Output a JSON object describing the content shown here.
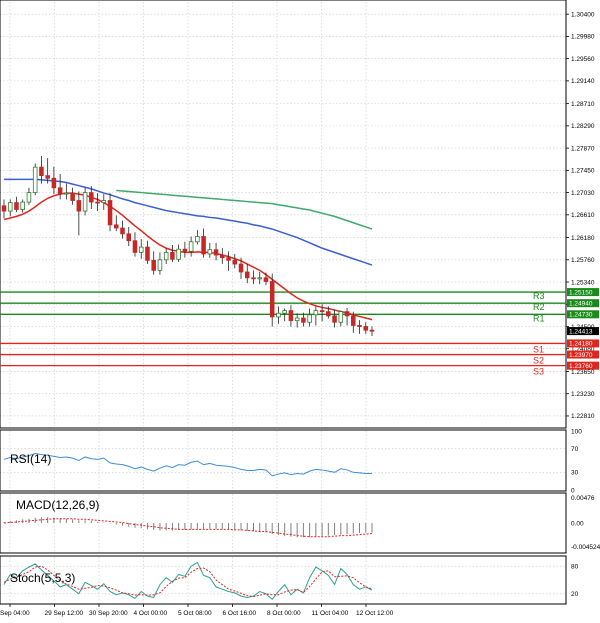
{
  "chart_data": {
    "type": "candlestick",
    "instrument_note": "",
    "colors": {
      "background": "#ffffff",
      "grid": "#c9c9c9",
      "bull": "#2e7d32",
      "bear": "#c62828",
      "ma_fast": "#e0261c",
      "ma_mid": "#3c5fd0",
      "ma_slow": "#3fa96a",
      "resistance": "#1a8a1a",
      "support": "#e0261c",
      "rsi": "#3c8fd9",
      "macd_hist": "#808080",
      "macd_signal": "#e0261c",
      "stoch_main": "#2aa198",
      "stoch_signal": "#e0261c"
    },
    "x_tick_labels": [
      "Sep 04:00",
      "29 Sep 12:00",
      "30 Sep 20:00",
      "4 Oct 00:00",
      "5 Oct 08:00",
      "6 Oct 16:00",
      "8 Oct 00:00",
      "11 Oct 04:00",
      "12 Oct 12:00"
    ],
    "price_axis": {
      "ylim": [
        1.2262,
        1.3063
      ],
      "tick_labels": [
        "1.30400",
        "1.29980",
        "1.29560",
        "1.29140",
        "1.28710",
        "1.28290",
        "1.27870",
        "1.27450",
        "1.27030",
        "1.26610",
        "1.26180",
        "1.25760",
        "1.25340",
        "1.24920",
        "1.24500",
        "1.24080",
        "1.23650",
        "1.23230",
        "1.22810"
      ]
    },
    "levels": {
      "resistance": [
        {
          "name": "R3",
          "value": 1.2515,
          "badge": "1.25150"
        },
        {
          "name": "R2",
          "value": 1.2494,
          "badge": "1.24940"
        },
        {
          "name": "R1",
          "value": 1.2473,
          "badge": "1.24730"
        }
      ],
      "support": [
        {
          "name": "S1",
          "value": 1.2418,
          "badge": "1.24180"
        },
        {
          "name": "S2",
          "value": 1.2397,
          "badge": "1.23970"
        },
        {
          "name": "S3",
          "value": 1.2376,
          "badge": "1.23760"
        }
      ],
      "current": {
        "value": 1.24413,
        "badge": "1.24413"
      }
    },
    "candles": {
      "open": [
        1.2678,
        1.2668,
        1.2684,
        1.2671,
        1.2685,
        1.2703,
        1.2751,
        1.2735,
        1.273,
        1.2712,
        1.2701,
        1.2702,
        1.2688,
        1.2668,
        1.2703,
        1.2685,
        1.2684,
        1.2688,
        1.2642,
        1.2636,
        1.2625,
        1.2612,
        1.259,
        1.26,
        1.2575,
        1.2556,
        1.2576,
        1.259,
        1.2577,
        1.2596,
        1.2592,
        1.261,
        1.262,
        1.2587,
        1.2595,
        1.2585,
        1.258,
        1.2575,
        1.2568,
        1.2553,
        1.2542,
        1.254,
        1.2542,
        1.2535,
        1.2468,
        1.2475,
        1.248,
        1.2461,
        1.2466,
        1.2458,
        1.2472,
        1.248,
        1.2478,
        1.247,
        1.2458,
        1.2478,
        1.247,
        1.2452,
        1.245,
        1.2443
      ],
      "high": [
        1.269,
        1.269,
        1.2695,
        1.269,
        1.2712,
        1.2758,
        1.2772,
        1.2768,
        1.2752,
        1.2738,
        1.272,
        1.2712,
        1.2705,
        1.2712,
        1.2715,
        1.2702,
        1.27,
        1.2702,
        1.266,
        1.265,
        1.2638,
        1.2628,
        1.2615,
        1.2612,
        1.2592,
        1.259,
        1.2598,
        1.2604,
        1.2605,
        1.261,
        1.262,
        1.2632,
        1.2635,
        1.2608,
        1.2608,
        1.2598,
        1.2592,
        1.2587,
        1.258,
        1.2568,
        1.2556,
        1.2553,
        1.2552,
        1.255,
        1.2488,
        1.2484,
        1.249,
        1.2475,
        1.2476,
        1.2484,
        1.2488,
        1.2492,
        1.2488,
        1.2482,
        1.248,
        1.2485,
        1.2478,
        1.2462,
        1.2458,
        1.245
      ],
      "low": [
        1.2654,
        1.2658,
        1.2666,
        1.2665,
        1.268,
        1.2698,
        1.272,
        1.272,
        1.27,
        1.269,
        1.269,
        1.268,
        1.2622,
        1.266,
        1.2672,
        1.2668,
        1.267,
        1.263,
        1.263,
        1.2616,
        1.2602,
        1.2582,
        1.2578,
        1.2568,
        1.2548,
        1.2548,
        1.2568,
        1.2572,
        1.2572,
        1.258,
        1.2582,
        1.2605,
        1.258,
        1.258,
        1.2575,
        1.2568,
        1.2555,
        1.256,
        1.254,
        1.2532,
        1.253,
        1.253,
        1.2528,
        1.245,
        1.2455,
        1.246,
        1.245,
        1.2448,
        1.245,
        1.245,
        1.2452,
        1.246,
        1.2465,
        1.2448,
        1.245,
        1.2452,
        1.2438,
        1.2436,
        1.2436,
        1.2432
      ],
      "close": [
        1.2668,
        1.2684,
        1.2671,
        1.2685,
        1.2703,
        1.2751,
        1.2735,
        1.273,
        1.2712,
        1.2701,
        1.2702,
        1.2688,
        1.2668,
        1.2703,
        1.2685,
        1.2684,
        1.2688,
        1.2642,
        1.2636,
        1.2625,
        1.2612,
        1.259,
        1.26,
        1.2575,
        1.2556,
        1.2576,
        1.259,
        1.2577,
        1.2596,
        1.2592,
        1.261,
        1.262,
        1.2587,
        1.2595,
        1.2585,
        1.258,
        1.2575,
        1.2568,
        1.2553,
        1.2542,
        1.254,
        1.2542,
        1.2535,
        1.2468,
        1.2475,
        1.248,
        1.2461,
        1.2466,
        1.2458,
        1.2472,
        1.248,
        1.2478,
        1.247,
        1.2458,
        1.2478,
        1.247,
        1.2452,
        1.245,
        1.2443,
        1.2441
      ]
    },
    "moving_averages": [
      {
        "key": "ma_fast",
        "values": [
          1.2652,
          1.2655,
          1.2658,
          1.2662,
          1.2668,
          1.2676,
          1.2685,
          1.2692,
          1.2697,
          1.27,
          1.2702,
          1.2702,
          1.27,
          1.2698,
          1.2694,
          1.269,
          1.2684,
          1.2677,
          1.2669,
          1.266,
          1.265,
          1.264,
          1.2631,
          1.2621,
          1.2612,
          1.2604,
          1.2598,
          1.2594,
          1.2592,
          1.259,
          1.259,
          1.2591,
          1.259,
          1.259,
          1.2588,
          1.2585,
          1.2582,
          1.2578,
          1.2574,
          1.2568,
          1.2562,
          1.2556,
          1.2548,
          1.2539,
          1.253,
          1.2521,
          1.2512,
          1.2504,
          1.2498,
          1.2493,
          1.2489,
          1.2486,
          1.2484,
          1.2481,
          1.2478,
          1.2476,
          1.2472,
          1.2469,
          1.2466,
          1.2463
        ]
      },
      {
        "key": "ma_mid",
        "values": [
          1.2728,
          1.2728,
          1.2728,
          1.2728,
          1.2728,
          1.2728,
          1.2727,
          1.2726,
          1.2725,
          1.2724,
          1.2722,
          1.2719,
          1.2716,
          1.2713,
          1.271,
          1.2706,
          1.2702,
          1.2699,
          1.2695,
          1.2691,
          1.2688,
          1.2684,
          1.2681,
          1.2678,
          1.2675,
          1.2672,
          1.2669,
          1.2667,
          1.2665,
          1.2663,
          1.2661,
          1.2659,
          1.2658,
          1.2656,
          1.2655,
          1.2653,
          1.2651,
          1.2649,
          1.2647,
          1.2645,
          1.2642,
          1.264,
          1.2637,
          1.2634,
          1.263,
          1.2626,
          1.2622,
          1.2618,
          1.2613,
          1.2608,
          1.2603,
          1.2598,
          1.2594,
          1.259,
          1.2586,
          1.2582,
          1.2578,
          1.2574,
          1.257,
          1.2566
        ]
      },
      {
        "key": "ma_slow",
        "values": [
          null,
          null,
          null,
          null,
          null,
          null,
          null,
          null,
          null,
          null,
          null,
          null,
          null,
          null,
          null,
          null,
          null,
          null,
          1.2707,
          1.2706,
          1.2705,
          1.2704,
          1.2703,
          1.2702,
          1.2701,
          1.27,
          1.2699,
          1.2698,
          1.2697,
          1.2696,
          1.2695,
          1.2694,
          1.2693,
          1.2692,
          1.2691,
          1.269,
          1.2689,
          1.2688,
          1.2687,
          1.2686,
          1.2685,
          1.2684,
          1.2683,
          1.2682,
          1.268,
          1.2678,
          1.2676,
          1.2674,
          1.2672,
          1.267,
          1.2667,
          1.2664,
          1.2661,
          1.2658,
          1.2654,
          1.265,
          1.2646,
          1.2642,
          1.2638,
          1.2634
        ]
      }
    ],
    "rsi": {
      "label": "RSI(14)",
      "ylim": [
        0,
        100
      ],
      "tick_labels": [
        "100",
        "70",
        "30",
        "0"
      ],
      "values": [
        52,
        55,
        53,
        56,
        58,
        62,
        60,
        59,
        57,
        55,
        56,
        54,
        50,
        56,
        53,
        52,
        54,
        46,
        44,
        43,
        40,
        36,
        39,
        35,
        32,
        37,
        41,
        38,
        43,
        42,
        47,
        49,
        43,
        45,
        42,
        41,
        40,
        38,
        35,
        33,
        33,
        35,
        34,
        24,
        27,
        29,
        26,
        28,
        27,
        32,
        35,
        34,
        32,
        30,
        36,
        34,
        30,
        29,
        28,
        28
      ]
    },
    "macd": {
      "label": "MACD(12,26,9)",
      "ylim": [
        -0.0055,
        0.0055
      ],
      "tick_labels": [
        "0.00476",
        "0.00",
        "-0.004524"
      ],
      "histogram": [
        0.0002,
        0.0004,
        0.0005,
        0.0007,
        0.0008,
        0.001,
        0.0011,
        0.0011,
        0.001,
        0.0009,
        0.0008,
        0.0007,
        0.0005,
        0.0005,
        0.0004,
        0.0002,
        0.0001,
        -0.0001,
        -0.0003,
        -0.0005,
        -0.0007,
        -0.0009,
        -0.001,
        -0.0012,
        -0.0013,
        -0.0014,
        -0.0014,
        -0.0014,
        -0.0013,
        -0.0013,
        -0.0012,
        -0.0011,
        -0.0011,
        -0.0011,
        -0.0011,
        -0.0012,
        -0.0012,
        -0.0013,
        -0.0014,
        -0.0015,
        -0.0016,
        -0.0017,
        -0.0018,
        -0.0021,
        -0.0023,
        -0.0025,
        -0.0026,
        -0.0027,
        -0.0027,
        -0.0027,
        -0.0026,
        -0.0025,
        -0.0024,
        -0.0023,
        -0.0022,
        -0.0021,
        -0.002,
        -0.0019,
        -0.0018,
        -0.0018
      ],
      "signal": [
        0.0,
        0.0001,
        0.0002,
        0.0003,
        0.0004,
        0.0005,
        0.0006,
        0.0007,
        0.0008,
        0.0008,
        0.0008,
        0.0008,
        0.0007,
        0.0007,
        0.0006,
        0.0005,
        0.0004,
        0.0003,
        0.0002,
        0.0001,
        -0.0001,
        -0.0003,
        -0.0004,
        -0.0006,
        -0.0007,
        -0.0009,
        -0.001,
        -0.0011,
        -0.0012,
        -0.0012,
        -0.0012,
        -0.0012,
        -0.0012,
        -0.0012,
        -0.0012,
        -0.0012,
        -0.0012,
        -0.0013,
        -0.0013,
        -0.0014,
        -0.0015,
        -0.0016,
        -0.0016,
        -0.0018,
        -0.0019,
        -0.0021,
        -0.0022,
        -0.0024,
        -0.0025,
        -0.0026,
        -0.0026,
        -0.0026,
        -0.0026,
        -0.0025,
        -0.0024,
        -0.0024,
        -0.0023,
        -0.0022,
        -0.0021,
        -0.002
      ]
    },
    "stoch": {
      "label": "Stoch(5,5,3)",
      "ylim": [
        0,
        100
      ],
      "tick_labels": [
        "80",
        "20"
      ],
      "main": [
        40,
        62,
        55,
        70,
        78,
        85,
        72,
        60,
        48,
        35,
        40,
        30,
        20,
        45,
        38,
        30,
        42,
        25,
        18,
        22,
        18,
        10,
        25,
        15,
        12,
        40,
        55,
        45,
        62,
        58,
        80,
        88,
        60,
        55,
        35,
        30,
        25,
        22,
        15,
        12,
        15,
        25,
        20,
        8,
        25,
        40,
        18,
        30,
        22,
        55,
        78,
        70,
        60,
        40,
        75,
        62,
        40,
        30,
        35,
        28
      ],
      "signal": [
        45,
        52,
        56,
        62,
        68,
        78,
        80,
        72,
        60,
        48,
        41,
        36,
        30,
        32,
        34,
        38,
        37,
        33,
        28,
        22,
        20,
        17,
        18,
        17,
        18,
        22,
        36,
        47,
        54,
        55,
        67,
        75,
        76,
        68,
        50,
        40,
        30,
        26,
        21,
        16,
        14,
        17,
        20,
        18,
        18,
        24,
        28,
        29,
        23,
        36,
        52,
        68,
        70,
        57,
        58,
        59,
        55,
        44,
        35,
        31
      ]
    }
  }
}
